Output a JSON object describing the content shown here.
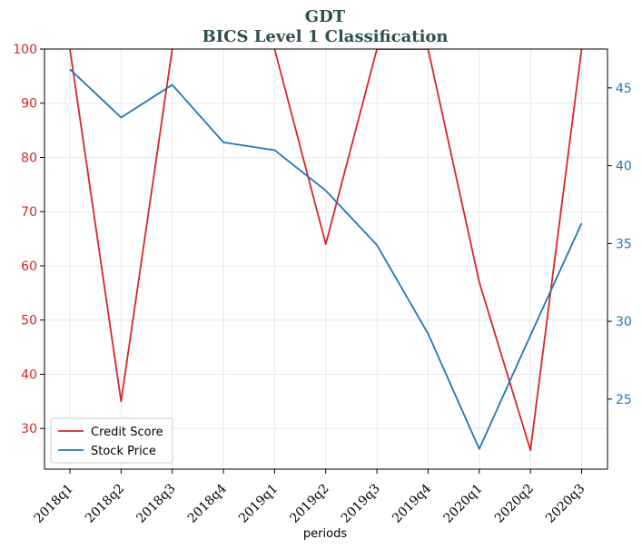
{
  "chart_data": {
    "type": "line",
    "title": "GDT",
    "subtitle": "BICS Level 1 Classification",
    "xlabel": "periods",
    "categories": [
      "2018q1",
      "2018q2",
      "2018q3",
      "2018q4",
      "2019q1",
      "2019q2",
      "2019q3",
      "2019q4",
      "2020q1",
      "2020q2",
      "2020q3"
    ],
    "left_axis": {
      "ylim": [
        22.5,
        100
      ],
      "ticks": [
        30,
        40,
        50,
        60,
        70,
        80,
        90,
        100
      ],
      "color": "#d62728"
    },
    "right_axis": {
      "ylim": [
        20.5,
        47.5
      ],
      "ticks": [
        25,
        30,
        35,
        40,
        45
      ],
      "color": "#1f77b4"
    },
    "series": [
      {
        "name": "Credit Score",
        "axis": "left",
        "color": "#d62728",
        "values": [
          100,
          35,
          100,
          null,
          100,
          64,
          100,
          100,
          57,
          26,
          100
        ]
      },
      {
        "name": "Stock Price",
        "axis": "right",
        "color": "#1f77b4",
        "values": [
          46.2,
          43.1,
          45.2,
          41.5,
          41.0,
          38.4,
          34.9,
          29.2,
          21.8,
          29.1,
          36.3
        ]
      }
    ],
    "grid": true,
    "legend_position": "bottom-left"
  }
}
